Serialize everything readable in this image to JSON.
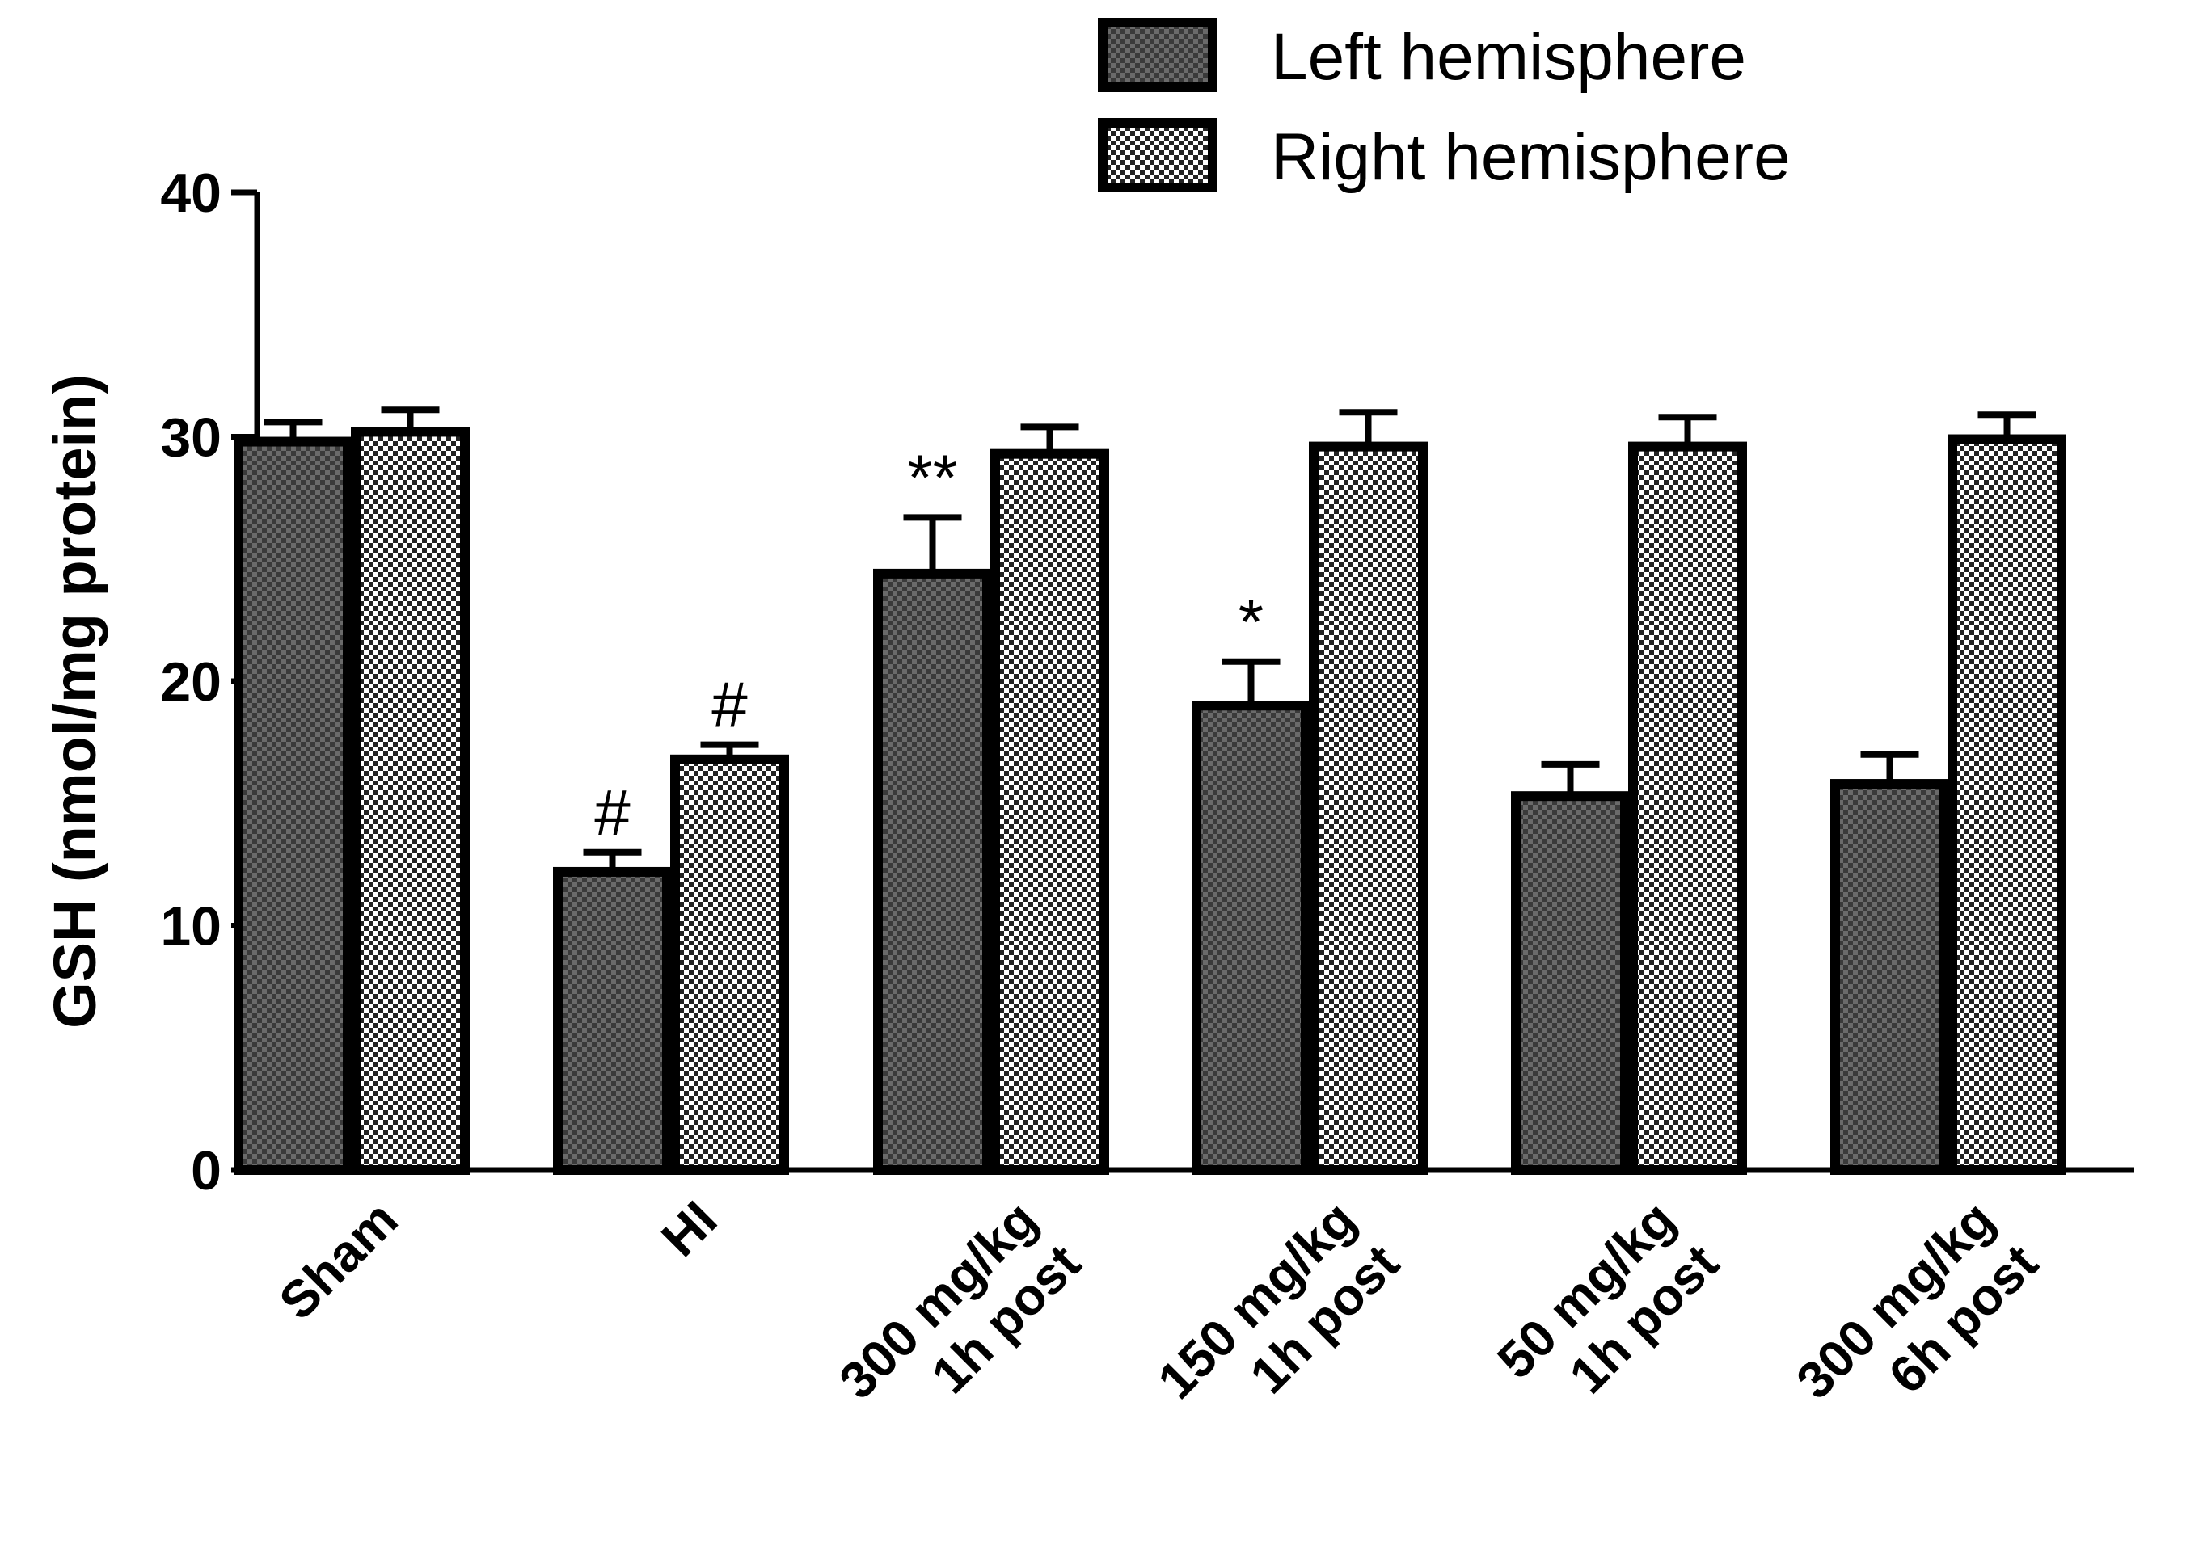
{
  "chart_data": {
    "type": "bar",
    "ylabel": "GSH (nmol/mg protein)",
    "ylim": [
      0,
      40
    ],
    "yticks": [
      0,
      10,
      20,
      30,
      40
    ],
    "categories": [
      [
        "Sham"
      ],
      [
        "HI"
      ],
      [
        "300 mg/kg",
        "1h post"
      ],
      [
        "150 mg/kg",
        "1h post"
      ],
      [
        "50 mg/kg",
        "1h post"
      ],
      [
        "300 mg/kg",
        "6h post"
      ]
    ],
    "series": [
      {
        "name": "Left hemisphere",
        "color": "#444444",
        "values": [
          29.8,
          12.2,
          24.4,
          19.0,
          15.3,
          15.8
        ],
        "errors": [
          0.8,
          0.8,
          2.3,
          1.8,
          1.3,
          1.2
        ],
        "annotations": [
          "",
          "#",
          "**",
          "*",
          "",
          ""
        ]
      },
      {
        "name": "Right hemisphere",
        "color": "#cccccc",
        "values": [
          30.2,
          16.8,
          29.3,
          29.6,
          29.6,
          29.9
        ],
        "errors": [
          0.9,
          0.6,
          1.1,
          1.4,
          1.2,
          1.0
        ],
        "annotations": [
          "",
          "#",
          "",
          "",
          "",
          ""
        ]
      }
    ],
    "legend_position": "top-right",
    "grid": false
  }
}
